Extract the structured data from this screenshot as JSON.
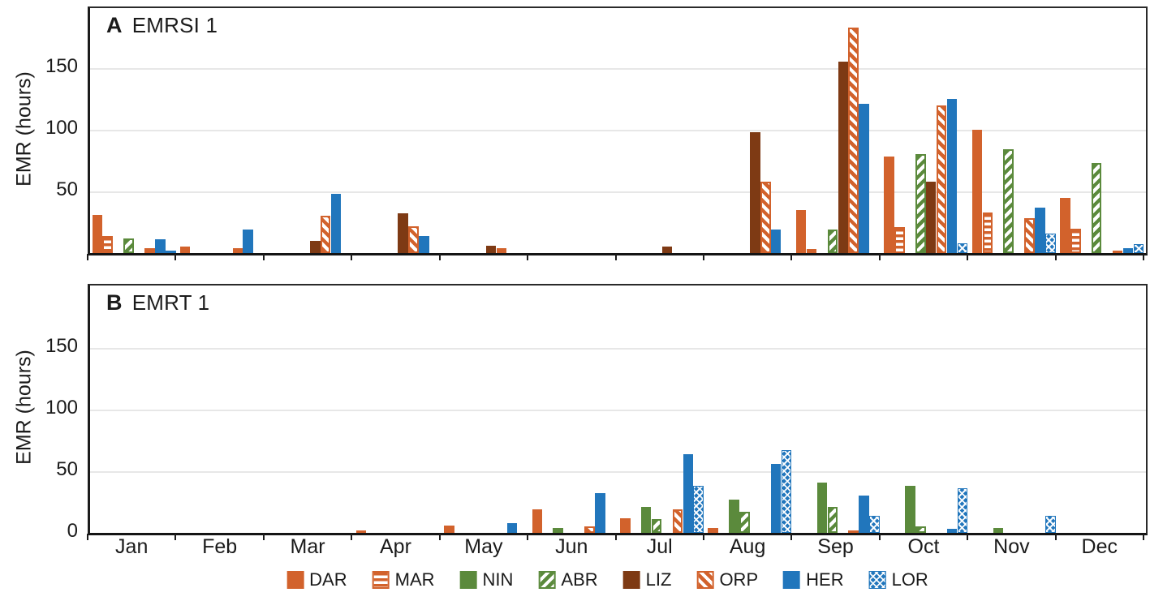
{
  "figure": {
    "ylabel": "EMR (hours)",
    "months": [
      "Jan",
      "Feb",
      "Mar",
      "Apr",
      "May",
      "Jun",
      "Jul",
      "Aug",
      "Sep",
      "Oct",
      "Nov",
      "Dec"
    ]
  },
  "colors": {
    "orange": "#D2622C",
    "green": "#5B8A3C",
    "brown": "#7E3A14",
    "blue": "#2176BC",
    "axis": "#1c1c1c",
    "grid": "#e7e7e7",
    "text": "#1b1b1b"
  },
  "chart_data": [
    {
      "panel_letter": "A",
      "title": "EMRSI 1",
      "type": "bar",
      "xlabel": "",
      "ylabel": "EMR (hours)",
      "categories": [
        "Jan",
        "Feb",
        "Mar",
        "Apr",
        "May",
        "Jun",
        "Jul",
        "Aug",
        "Sep",
        "Oct",
        "Nov",
        "Dec"
      ],
      "yticks": [
        150,
        100,
        50
      ],
      "ylim": [
        0,
        198
      ],
      "grid": "horizontal",
      "legend_position": "bottom",
      "series": [
        {
          "name": "DAR",
          "color": "orange",
          "pattern": "solid",
          "values": [
            31,
            5,
            0,
            0,
            0,
            0,
            0,
            0,
            35,
            78,
            100,
            45
          ]
        },
        {
          "name": "MAR",
          "color": "orange",
          "pattern": "hlines",
          "values": [
            14,
            0,
            0,
            0,
            0,
            0,
            0,
            0,
            3,
            21,
            33,
            20
          ]
        },
        {
          "name": "NIN",
          "color": "green",
          "pattern": "solid",
          "values": [
            0,
            0,
            0,
            0,
            0,
            0,
            0,
            0,
            0,
            0,
            0,
            0
          ]
        },
        {
          "name": "ABR",
          "color": "green",
          "pattern": "diag",
          "values": [
            12,
            0,
            0,
            0,
            0,
            0,
            0,
            0,
            19,
            80,
            84,
            73
          ]
        },
        {
          "name": "LIZ",
          "color": "brown",
          "pattern": "solid",
          "values": [
            0,
            0,
            10,
            32,
            6,
            0,
            5,
            98,
            155,
            58,
            0,
            0
          ]
        },
        {
          "name": "ORP",
          "color": "orange",
          "pattern": "diag2",
          "values": [
            4,
            4,
            30,
            22,
            4,
            0,
            0,
            58,
            183,
            120,
            28,
            2
          ]
        },
        {
          "name": "HER",
          "color": "blue",
          "pattern": "solid",
          "values": [
            11,
            19,
            48,
            14,
            0,
            0,
            0,
            19,
            121,
            125,
            37,
            4
          ]
        },
        {
          "name": "LOR",
          "color": "blue",
          "pattern": "cross",
          "values": [
            2,
            0,
            0,
            0,
            0,
            0,
            0,
            0,
            0,
            8,
            16,
            7
          ]
        }
      ]
    },
    {
      "panel_letter": "B",
      "title": "EMRT 1",
      "type": "bar",
      "xlabel": "",
      "ylabel": "EMR (hours)",
      "categories": [
        "Jan",
        "Feb",
        "Mar",
        "Apr",
        "May",
        "Jun",
        "Jul",
        "Aug",
        "Sep",
        "Oct",
        "Nov",
        "Dec"
      ],
      "yticks": [
        150,
        100,
        50,
        0
      ],
      "ylim": [
        0,
        200
      ],
      "grid": "horizontal",
      "legend_position": "bottom",
      "series": [
        {
          "name": "DAR",
          "color": "orange",
          "pattern": "solid",
          "values": [
            0,
            0,
            0,
            2,
            6,
            19,
            12,
            4,
            0,
            0,
            0,
            0
          ]
        },
        {
          "name": "MAR",
          "color": "orange",
          "pattern": "hlines",
          "values": [
            0,
            0,
            0,
            0,
            0,
            0,
            0,
            0,
            0,
            0,
            0,
            0
          ]
        },
        {
          "name": "NIN",
          "color": "green",
          "pattern": "solid",
          "values": [
            0,
            0,
            0,
            0,
            0,
            4,
            21,
            27,
            41,
            38,
            4,
            0
          ]
        },
        {
          "name": "ABR",
          "color": "green",
          "pattern": "diag",
          "values": [
            0,
            0,
            0,
            0,
            0,
            0,
            11,
            17,
            21,
            5,
            0,
            0
          ]
        },
        {
          "name": "LIZ",
          "color": "brown",
          "pattern": "solid",
          "values": [
            0,
            0,
            0,
            0,
            0,
            0,
            0,
            0,
            0,
            0,
            0,
            0
          ]
        },
        {
          "name": "ORP",
          "color": "orange",
          "pattern": "diag2",
          "values": [
            0,
            0,
            0,
            0,
            0,
            5,
            19,
            0,
            2,
            0,
            0,
            0
          ]
        },
        {
          "name": "HER",
          "color": "blue",
          "pattern": "solid",
          "values": [
            0,
            0,
            0,
            0,
            8,
            32,
            64,
            56,
            30,
            3,
            0,
            0
          ]
        },
        {
          "name": "LOR",
          "color": "blue",
          "pattern": "cross",
          "values": [
            0,
            0,
            0,
            0,
            0,
            0,
            38,
            67,
            14,
            36,
            14,
            0
          ]
        }
      ]
    }
  ],
  "legend": {
    "items": [
      "DAR",
      "MAR",
      "NIN",
      "ABR",
      "LIZ",
      "ORP",
      "HER",
      "LOR"
    ]
  }
}
